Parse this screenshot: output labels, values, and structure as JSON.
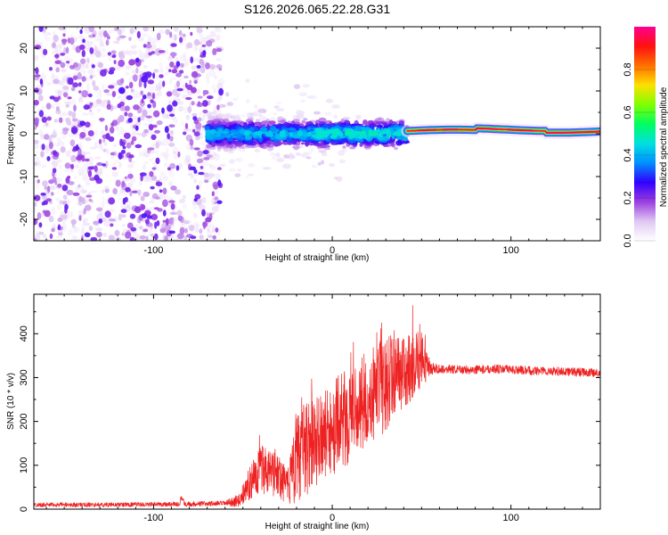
{
  "title": "S126.2026.065.22.28.G31",
  "chart_data": [
    {
      "type": "heatmap",
      "title": "S126.2026.065.22.28.G31",
      "xlabel": "Height of straight line (km)",
      "ylabel": "Frequency (Hz)",
      "xlim": [
        -167,
        150
      ],
      "ylim": [
        -25,
        25
      ],
      "xticks": [
        -100,
        0,
        100
      ],
      "yticks": [
        -20,
        -10,
        0,
        10,
        20
      ],
      "grid": false,
      "colorbar": {
        "label": "Normalized spectral amplitude",
        "range": [
          0,
          1
        ],
        "ticks": [
          0.0,
          0.2,
          0.4,
          0.6,
          0.8
        ],
        "stops": [
          "#ffffff",
          "#dfc8f2",
          "#9b3fe0",
          "#3000ff",
          "#0090ff",
          "#00e0e0",
          "#00ff60",
          "#80ff00",
          "#ffe000",
          "#ff7000",
          "#ff1010",
          "#ff0090"
        ]
      },
      "regions": [
        {
          "name": "noise",
          "x_range": [
            -167,
            -62
          ],
          "freq_spread": 25,
          "amplitude": 0.1
        },
        {
          "name": "turbulent",
          "x_range": [
            -70,
            42
          ],
          "freq_center": 0,
          "freq_spread": 4,
          "amplitude": 0.35
        },
        {
          "name": "stable",
          "x_range": [
            42,
            150
          ],
          "freq_center": 1,
          "freq_spread": 1.5,
          "amplitude": 0.9
        }
      ]
    },
    {
      "type": "line",
      "xlabel": "Height of straight line (km)",
      "ylabel": "SNR (10 * v/v)",
      "xlim": [
        -167,
        150
      ],
      "ylim": [
        0,
        490
      ],
      "xticks": [
        -100,
        0,
        100
      ],
      "yticks": [
        0,
        100,
        200,
        300,
        400
      ],
      "grid": false,
      "series": [
        {
          "name": "SNR",
          "color": "#ee2222",
          "x": [
            -167,
            -140,
            -120,
            -100,
            -80,
            -60,
            -52,
            -45,
            -40,
            -35,
            -30,
            -25,
            -20,
            -15,
            -10,
            -5,
            0,
            5,
            10,
            15,
            20,
            25,
            30,
            35,
            40,
            45,
            50,
            55,
            60,
            70,
            80,
            90,
            100,
            110,
            120,
            130,
            140,
            150
          ],
          "base": [
            10,
            10,
            10,
            11,
            12,
            13,
            20,
            70,
            95,
            75,
            85,
            50,
            110,
            140,
            155,
            165,
            185,
            200,
            215,
            235,
            255,
            270,
            285,
            310,
            310,
            330,
            340,
            320,
            320,
            318,
            318,
            320,
            318,
            316,
            315,
            314,
            312,
            310
          ],
          "amplitude": [
            5,
            5,
            5,
            5,
            6,
            6,
            15,
            45,
            55,
            55,
            60,
            40,
            95,
            110,
            110,
            100,
            110,
            110,
            110,
            105,
            110,
            105,
            110,
            90,
            80,
            80,
            70,
            15,
            10,
            10,
            10,
            10,
            10,
            10,
            10,
            10,
            10,
            10
          ]
        }
      ]
    }
  ]
}
